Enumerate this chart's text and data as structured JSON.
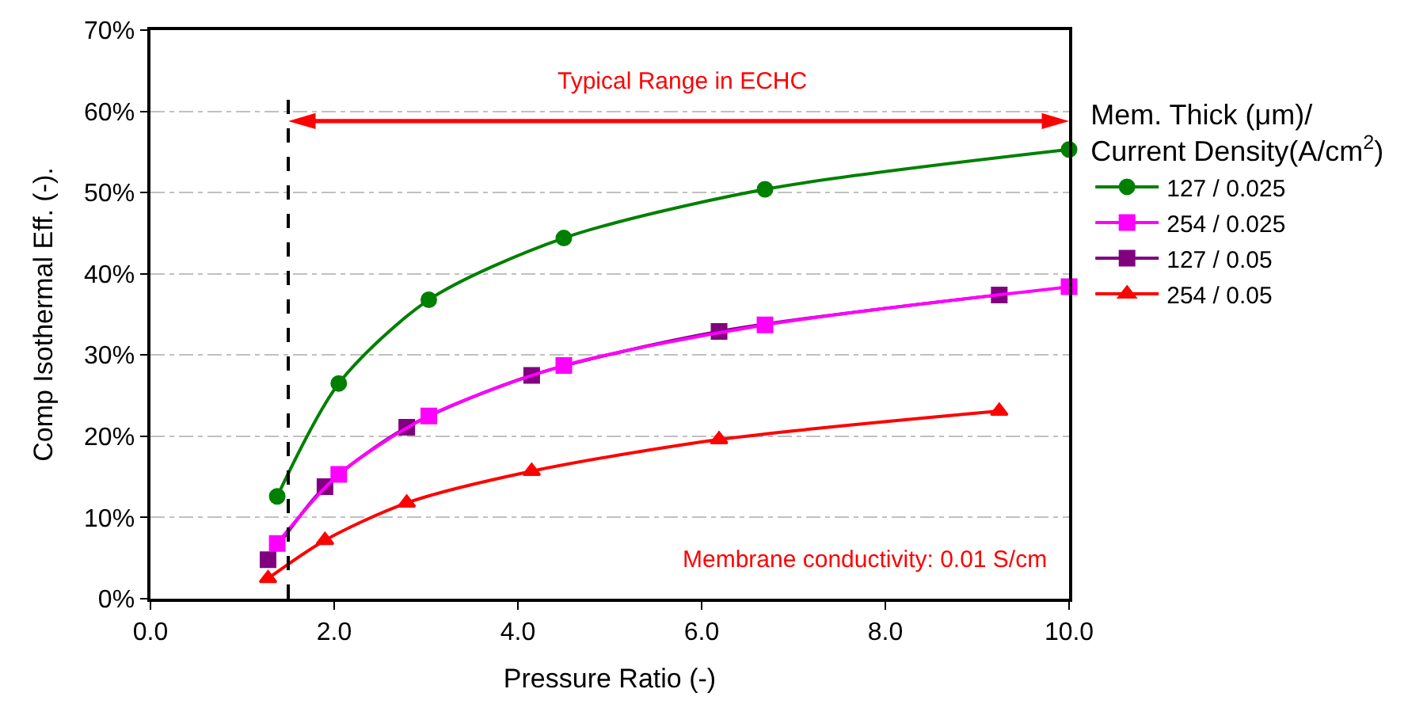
{
  "chart_data": {
    "type": "line",
    "xlabel": "Pressure Ratio (-)",
    "ylabel": "Comp Isothermal Eff. (-).",
    "legend_title": "Mem. Thick (μm)/\nCurrent Density(A/cm$^{2}$)",
    "xlim": [
      0,
      10
    ],
    "xticks": [
      {
        "value": 0,
        "label": "0.0"
      },
      {
        "value": 2,
        "label": "2.0"
      },
      {
        "value": 4,
        "label": "4.0"
      },
      {
        "value": 6,
        "label": "6.0"
      },
      {
        "value": 8,
        "label": "8.0"
      },
      {
        "value": 10,
        "label": "10.0"
      }
    ],
    "ylim": [
      0,
      70
    ],
    "yticks": [
      {
        "value": 0,
        "label": "0%"
      },
      {
        "value": 10,
        "label": "10%"
      },
      {
        "value": 20,
        "label": "20%"
      },
      {
        "value": 30,
        "label": "30%"
      },
      {
        "value": 40,
        "label": "40%"
      },
      {
        "value": 50,
        "label": "50%"
      },
      {
        "value": 60,
        "label": "60%"
      },
      {
        "value": 70,
        "label": "70%"
      }
    ],
    "grid": "y",
    "legend": "right",
    "series": [
      {
        "name": "127 / 0.025",
        "color": "#008000",
        "marker": "circle",
        "x": [
          1.38,
          2.05,
          3.03,
          4.5,
          6.69,
          10.0
        ],
        "values": [
          12.6,
          26.5,
          36.8,
          44.4,
          50.4,
          55.3
        ]
      },
      {
        "name": "254 / 0.025",
        "color": "#ff00ff",
        "marker": "square",
        "x": [
          1.38,
          2.05,
          3.03,
          4.5,
          6.69,
          10.0
        ],
        "values": [
          6.8,
          15.3,
          22.5,
          28.7,
          33.7,
          38.4
        ]
      },
      {
        "name": "127 / 0.05",
        "color": "#800080",
        "marker": "square",
        "x": [
          1.28,
          1.9,
          2.79,
          4.15,
          6.19,
          9.24
        ],
        "values": [
          4.8,
          13.8,
          21.1,
          27.5,
          32.9,
          37.4
        ]
      },
      {
        "name": "254 / 0.05",
        "color": "#ff0000",
        "marker": "triangle",
        "x": [
          1.28,
          1.9,
          2.79,
          4.15,
          6.19,
          9.24
        ],
        "values": [
          2.5,
          7.2,
          11.8,
          15.7,
          19.6,
          23.1
        ]
      }
    ],
    "ref_lines": [
      {
        "axis": "x",
        "value": 1.5,
        "label": null,
        "color": "#000000",
        "line_style": "dashed"
      }
    ],
    "annotations": [
      "Typical Range in ECHC",
      "Membrane conductivity: 0.01 S/cm"
    ]
  }
}
